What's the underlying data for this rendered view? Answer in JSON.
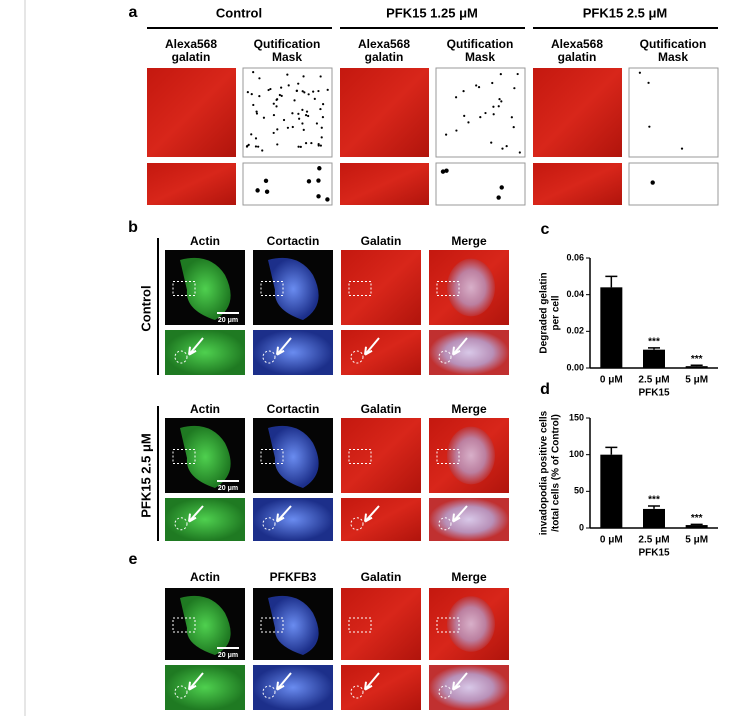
{
  "panel_a": {
    "letter": "a",
    "groups": [
      "Control",
      "PFK15 1.25 μM",
      "PFK15 2.5 μM"
    ],
    "image_label": [
      "Alexa568",
      "galatin"
    ],
    "mask_label": [
      "Qutification",
      "Mask"
    ]
  },
  "panel_b": {
    "letter": "b",
    "columns": [
      "Actin",
      "Cortactin",
      "Galatin",
      "Merge"
    ],
    "rows": [
      "Control",
      "PFK15 2.5 μM"
    ],
    "scale_bar": "20 μm"
  },
  "panel_e": {
    "letter": "e",
    "columns": [
      "Actin",
      "PFKFB3",
      "Galatin",
      "Merge"
    ],
    "scale_bar": "20 μm"
  },
  "chart_data": [
    {
      "type": "bar",
      "label": "c",
      "ylabel": [
        "Degraded gelatin",
        "per cell"
      ],
      "categories": [
        "0 μM",
        "2.5 μM",
        "5 μM"
      ],
      "xlabel": "PFK15",
      "values": [
        0.044,
        0.01,
        0.001
      ],
      "errors": [
        0.006,
        0.001,
        0.0005
      ],
      "annotations": [
        null,
        "***",
        "***"
      ],
      "color": "#000000",
      "ylim": [
        0,
        0.06
      ],
      "yticks": [
        {
          "value": 0,
          "label": "0.00"
        },
        {
          "value": 0.02,
          "label": "0.02"
        },
        {
          "value": 0.04,
          "label": "0.04"
        },
        {
          "value": 0.06,
          "label": "0.06"
        }
      ]
    },
    {
      "type": "bar",
      "label": "d",
      "ylabel": [
        "invadopodia positive cells",
        "/total cells (% of Control)"
      ],
      "categories": [
        "0 μM",
        "2.5 μM",
        "5 μM"
      ],
      "xlabel": "PFK15",
      "values": [
        100,
        26,
        4
      ],
      "errors": [
        10,
        4,
        1
      ],
      "annotations": [
        null,
        "***",
        "***"
      ],
      "color": "#000000",
      "ylim": [
        0,
        150
      ],
      "yticks": [
        0,
        50,
        100,
        150
      ]
    }
  ]
}
